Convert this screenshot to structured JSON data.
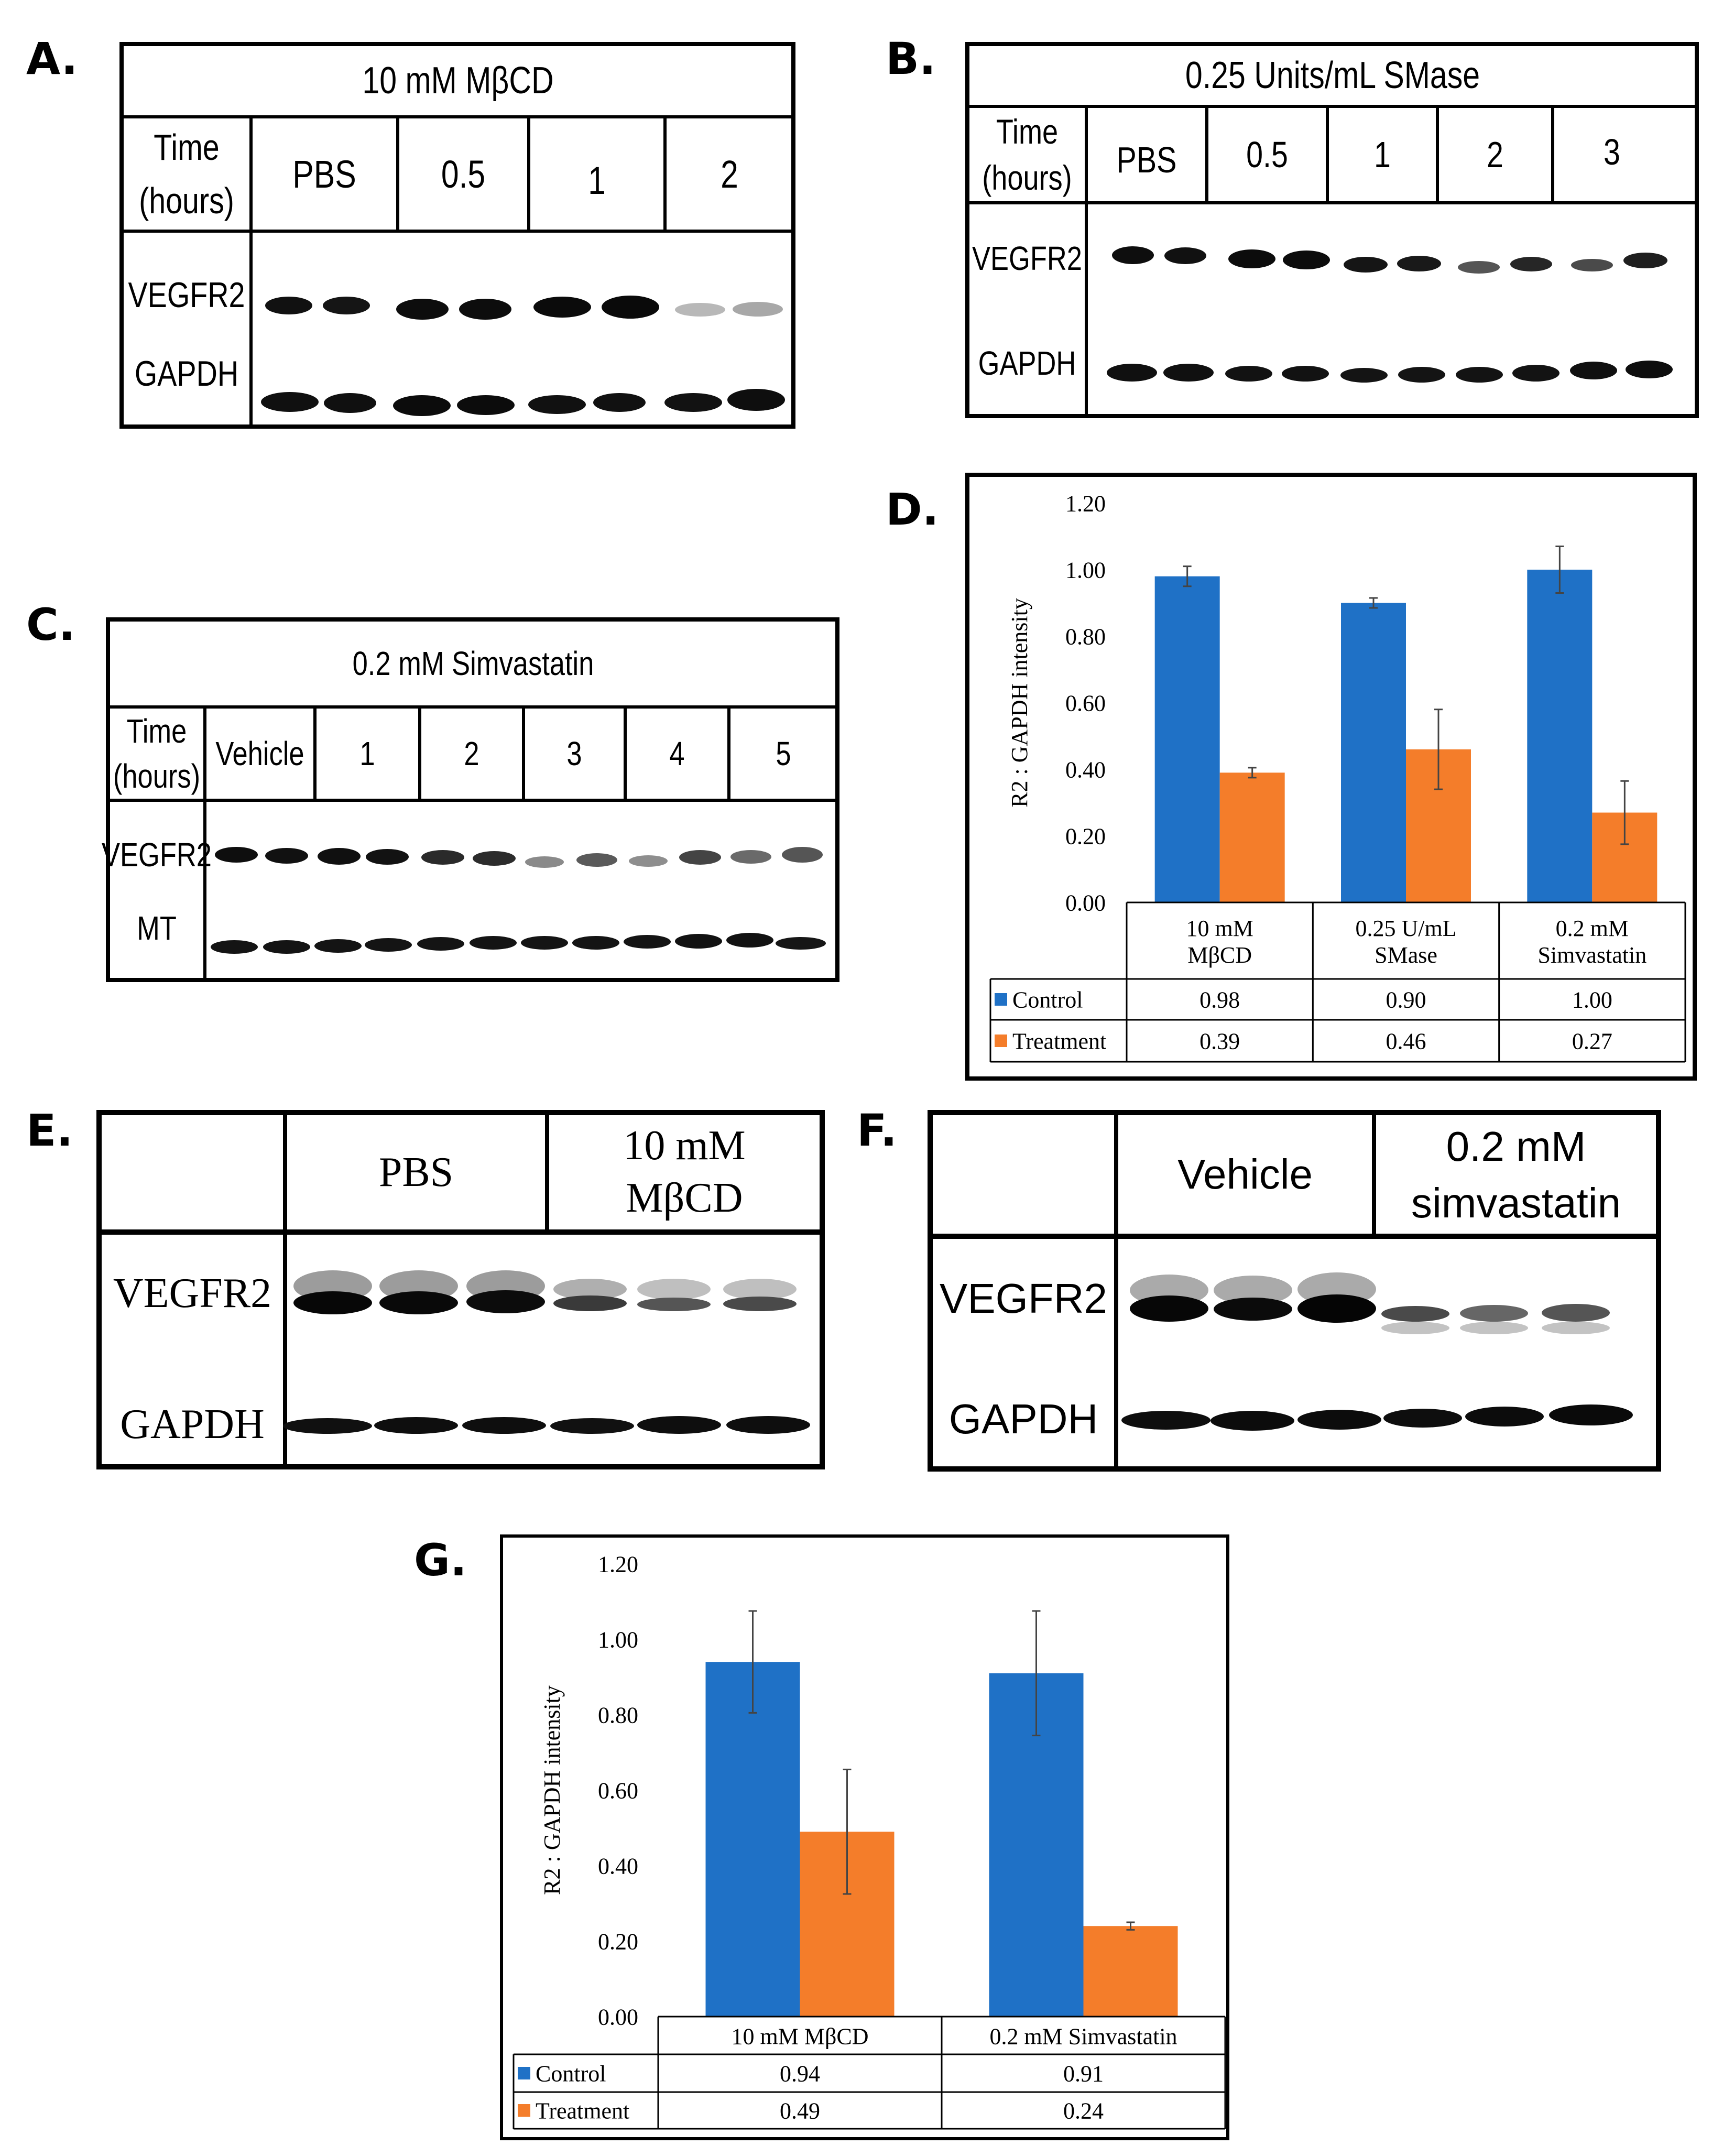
{
  "panels": {
    "A": {
      "label": "A.",
      "title": "10 mM MβCD",
      "time_label_line1": "Time",
      "time_label_line2": "(hours)",
      "lanes": [
        "PBS",
        "0.5",
        "1",
        "2"
      ],
      "rows": [
        "VEGFR2",
        "GAPDH"
      ]
    },
    "B": {
      "label": "B.",
      "title": "0.25 Units/mL SMase",
      "time_label_line1": "Time",
      "time_label_line2": "(hours)",
      "lanes": [
        "PBS",
        "0.5",
        "1",
        "2",
        "3"
      ],
      "rows": [
        "VEGFR2",
        "GAPDH"
      ]
    },
    "C": {
      "label": "C.",
      "title": "0.2 mM Simvastatin",
      "time_label_line1": "Time",
      "time_label_line2": "(hours)",
      "lanes": [
        "Vehicle",
        "1",
        "2",
        "3",
        "4",
        "5"
      ],
      "rows": [
        "VEGFR2",
        "MT"
      ]
    },
    "D": {
      "label": "D."
    },
    "E": {
      "label": "E.",
      "groups": [
        "PBS",
        "10 mM",
        "MβCD"
      ],
      "rows": [
        "VEGFR2",
        "GAPDH"
      ]
    },
    "F": {
      "label": "F.",
      "groups": [
        "Vehicle",
        "0.2 mM",
        "simvastatin"
      ],
      "rows": [
        "VEGFR2",
        "GAPDH"
      ]
    },
    "G": {
      "label": "G."
    }
  },
  "colors": {
    "control": "#1f71c6",
    "treatment": "#f47d2a"
  },
  "chart_data": [
    {
      "id": "D",
      "type": "bar",
      "ylabel": "R2 : GAPDH intensity",
      "ylim": [
        0,
        1.2
      ],
      "yticks": [
        "0.00",
        "0.20",
        "0.40",
        "0.60",
        "0.80",
        "1.00",
        "1.20"
      ],
      "categories": [
        [
          "10 mM",
          "MβCD"
        ],
        [
          "0.25 U/mL",
          "SMase"
        ],
        [
          "0.2 mM",
          "Simvastatin"
        ]
      ],
      "series": [
        {
          "name": "Control",
          "values": [
            0.98,
            0.9,
            1.0
          ],
          "errors": [
            0.03,
            0.015,
            0.07
          ],
          "labels": [
            "0.98",
            "0.90",
            "1.00"
          ]
        },
        {
          "name": "Treatment",
          "values": [
            0.39,
            0.46,
            0.27
          ],
          "errors": [
            0.015,
            0.12,
            0.095
          ],
          "labels": [
            "0.39",
            "0.46",
            "0.27"
          ]
        }
      ]
    },
    {
      "id": "G",
      "type": "bar",
      "ylabel": "R2 : GAPDH intensity",
      "ylim": [
        0,
        1.2
      ],
      "yticks": [
        "0.00",
        "0.20",
        "0.40",
        "0.60",
        "0.80",
        "1.00",
        "1.20"
      ],
      "categories": [
        [
          "10 mM MβCD"
        ],
        [
          "0.2 mM Simvastatin"
        ]
      ],
      "series": [
        {
          "name": "Control",
          "values": [
            0.94,
            0.91
          ],
          "errors": [
            0.135,
            0.165
          ],
          "labels": [
            "0.94",
            "0.91"
          ]
        },
        {
          "name": "Treatment",
          "values": [
            0.49,
            0.24
          ],
          "errors": [
            0.165,
            0.01
          ],
          "labels": [
            "0.49",
            "0.24"
          ]
        }
      ]
    }
  ]
}
